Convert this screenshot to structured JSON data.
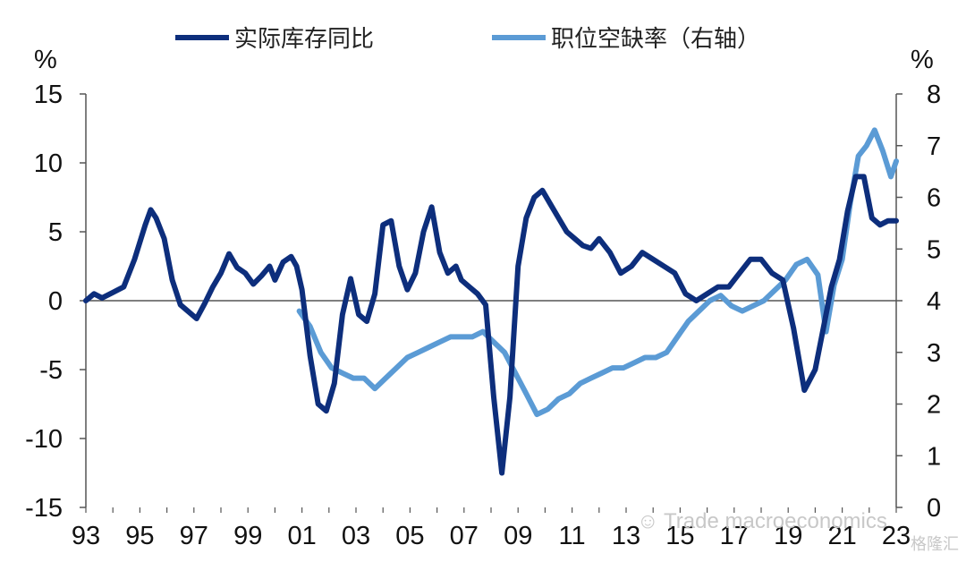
{
  "chart_data": {
    "type": "line",
    "title": "",
    "left_axis_unit": "%",
    "right_axis_unit": "%",
    "ylim_left": [
      -15,
      15
    ],
    "yticks_left": [
      "15",
      "10",
      "5",
      "0",
      "-5",
      "-10",
      "-15"
    ],
    "ylim_right": [
      0,
      8
    ],
    "yticks_right": [
      "8",
      "7",
      "6",
      "5",
      "4",
      "3",
      "2",
      "1",
      "0"
    ],
    "xlim": [
      1993,
      2023
    ],
    "xticks": [
      "93",
      "95",
      "97",
      "99",
      "01",
      "03",
      "05",
      "07",
      "09",
      "11",
      "13",
      "15",
      "17",
      "19",
      "21",
      "23"
    ],
    "legend_position": "top",
    "grid": false,
    "series": [
      {
        "name": "实际库存同比",
        "axis": "left",
        "color": "#0d2e7c",
        "x": [
          1993.0,
          1993.3,
          1993.6,
          1994.0,
          1994.4,
          1994.8,
          1995.2,
          1995.4,
          1995.6,
          1995.9,
          1996.2,
          1996.5,
          1996.8,
          1997.1,
          1997.4,
          1997.7,
          1998.0,
          1998.3,
          1998.6,
          1998.9,
          1999.2,
          1999.5,
          1999.8,
          2000.0,
          2000.3,
          2000.6,
          2000.8,
          2001.0,
          2001.3,
          2001.6,
          2001.9,
          2002.2,
          2002.5,
          2002.8,
          2003.1,
          2003.4,
          2003.7,
          2004.0,
          2004.3,
          2004.6,
          2004.9,
          2005.2,
          2005.5,
          2005.8,
          2006.1,
          2006.4,
          2006.7,
          2006.9,
          2007.2,
          2007.5,
          2007.8,
          2008.1,
          2008.4,
          2008.7,
          2009.0,
          2009.3,
          2009.6,
          2009.9,
          2010.2,
          2010.5,
          2010.8,
          2011.1,
          2011.4,
          2011.7,
          2012.0,
          2012.4,
          2012.8,
          2013.2,
          2013.6,
          2014.0,
          2014.4,
          2014.8,
          2015.2,
          2015.6,
          2016.0,
          2016.4,
          2016.8,
          2017.2,
          2017.6,
          2018.0,
          2018.4,
          2018.8,
          2019.2,
          2019.6,
          2020.0,
          2020.3,
          2020.6,
          2020.9,
          2021.2,
          2021.5,
          2021.8,
          2022.1,
          2022.4,
          2022.7,
          2023.0
        ],
        "y": [
          0.0,
          0.5,
          0.2,
          0.6,
          1.0,
          3.0,
          5.5,
          6.6,
          6.0,
          4.5,
          1.5,
          -0.3,
          -0.8,
          -1.3,
          -0.2,
          1.0,
          2.0,
          3.4,
          2.4,
          2.0,
          1.2,
          1.8,
          2.5,
          1.5,
          2.8,
          3.2,
          2.5,
          0.8,
          -4.0,
          -7.5,
          -8.0,
          -6.0,
          -1.0,
          1.6,
          -1.0,
          -1.5,
          0.5,
          5.5,
          5.8,
          2.5,
          0.8,
          2.0,
          5.0,
          6.8,
          3.5,
          2.0,
          2.5,
          1.5,
          1.0,
          0.5,
          -0.3,
          -7.0,
          -12.5,
          -7.0,
          2.5,
          6.0,
          7.5,
          8.0,
          7.0,
          6.0,
          5.0,
          4.5,
          4.0,
          3.8,
          4.5,
          3.5,
          2.0,
          2.5,
          3.5,
          3.0,
          2.5,
          2.0,
          0.5,
          0.0,
          0.5,
          1.0,
          1.0,
          2.0,
          3.0,
          3.0,
          2.0,
          1.5,
          -2.0,
          -6.5,
          -5.0,
          -2.0,
          1.0,
          3.0,
          6.5,
          9.0,
          9.0,
          6.0,
          5.5,
          5.8,
          5.8
        ]
      },
      {
        "name": "职位空缺率（右轴）",
        "axis": "right",
        "color": "#5b9bd5",
        "x": [
          2000.9,
          2001.3,
          2001.7,
          2002.1,
          2002.5,
          2002.9,
          2003.3,
          2003.7,
          2004.1,
          2004.5,
          2004.9,
          2005.3,
          2005.7,
          2006.1,
          2006.5,
          2006.9,
          2007.3,
          2007.7,
          2008.1,
          2008.5,
          2008.9,
          2009.3,
          2009.7,
          2010.1,
          2010.5,
          2010.9,
          2011.3,
          2011.7,
          2012.1,
          2012.5,
          2012.9,
          2013.3,
          2013.7,
          2014.1,
          2014.5,
          2014.9,
          2015.3,
          2015.7,
          2016.1,
          2016.5,
          2016.9,
          2017.3,
          2017.7,
          2018.1,
          2018.5,
          2018.9,
          2019.3,
          2019.7,
          2020.1,
          2020.4,
          2020.7,
          2021.0,
          2021.3,
          2021.6,
          2021.9,
          2022.2,
          2022.5,
          2022.8,
          2023.0
        ],
        "y": [
          3.8,
          3.5,
          3.0,
          2.7,
          2.6,
          2.5,
          2.5,
          2.3,
          2.5,
          2.7,
          2.9,
          3.0,
          3.1,
          3.2,
          3.3,
          3.3,
          3.3,
          3.4,
          3.2,
          3.0,
          2.6,
          2.2,
          1.8,
          1.9,
          2.1,
          2.2,
          2.4,
          2.5,
          2.6,
          2.7,
          2.7,
          2.8,
          2.9,
          2.9,
          3.0,
          3.3,
          3.6,
          3.8,
          4.0,
          4.1,
          3.9,
          3.8,
          3.9,
          4.0,
          4.2,
          4.4,
          4.7,
          4.8,
          4.5,
          3.4,
          4.3,
          4.8,
          5.9,
          6.8,
          7.0,
          7.3,
          6.9,
          6.4,
          6.7
        ]
      }
    ]
  },
  "watermark": {
    "main": "Trade macroeconomics",
    "sub": "格隆汇"
  }
}
